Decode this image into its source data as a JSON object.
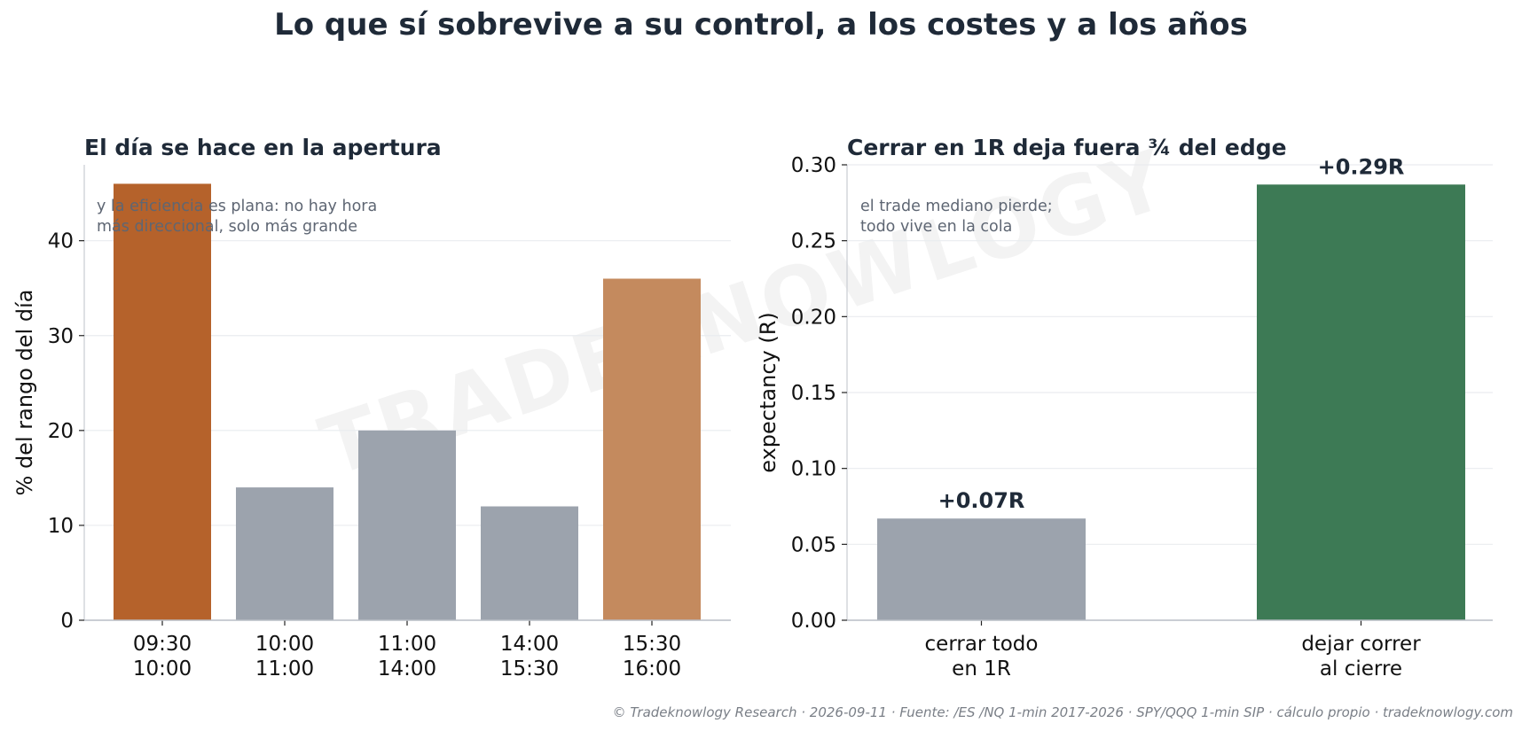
{
  "suptitle": "Lo que sí sobrevive a su control, a los costes y a los años",
  "watermark": "TRADEKNOWLOGY",
  "footer": "© Tradeknowlogy Research   ·   2026-09-11   ·   Fuente: /ES /NQ 1-min 2017-2026 · SPY/QQQ 1-min SIP · cálculo propio   ·   tradeknowlogy.com",
  "chart_data": [
    {
      "type": "bar",
      "title": "El día se hace en la apertura",
      "xlabel": "",
      "ylabel": "% del rango del día",
      "categories": [
        [
          "09:30",
          "10:00"
        ],
        [
          "10:00",
          "11:00"
        ],
        [
          "11:00",
          "14:00"
        ],
        [
          "14:00",
          "15:30"
        ],
        [
          "15:30",
          "16:00"
        ]
      ],
      "values": [
        46,
        14,
        20,
        12,
        36
      ],
      "colors": [
        "#b5622b",
        "#9ca3ad",
        "#9ca3ad",
        "#9ca3ad",
        "#c48a5e"
      ],
      "ylim": [
        0,
        48
      ],
      "yticks": [
        0,
        10,
        20,
        30,
        40
      ],
      "ytick_labels": [
        "0",
        "10",
        "20",
        "30",
        "40"
      ],
      "grid": "horizontal",
      "annotation": [
        "y la eficiencia es plana: no hay hora",
        "más direccional, solo más grande"
      ]
    },
    {
      "type": "bar",
      "title": "Cerrar en 1R deja fuera ¾ del edge",
      "xlabel": "",
      "ylabel": "expectancy (R)",
      "categories": [
        [
          "cerrar todo",
          "en 1R"
        ],
        [
          "dejar correr",
          "al cierre"
        ]
      ],
      "values": [
        0.067,
        0.287
      ],
      "data_labels": [
        "+0.07R",
        "+0.29R"
      ],
      "colors": [
        "#9ca3ad",
        "#3d7a55"
      ],
      "ylim": [
        0,
        0.3
      ],
      "yticks": [
        0,
        0.05,
        0.1,
        0.15,
        0.2,
        0.25,
        0.3
      ],
      "ytick_labels": [
        "0.00",
        "0.05",
        "0.10",
        "0.15",
        "0.20",
        "0.25",
        "0.30"
      ],
      "grid": "horizontal",
      "annotation": [
        "el trade mediano pierde;",
        "todo vive en la cola"
      ]
    }
  ]
}
